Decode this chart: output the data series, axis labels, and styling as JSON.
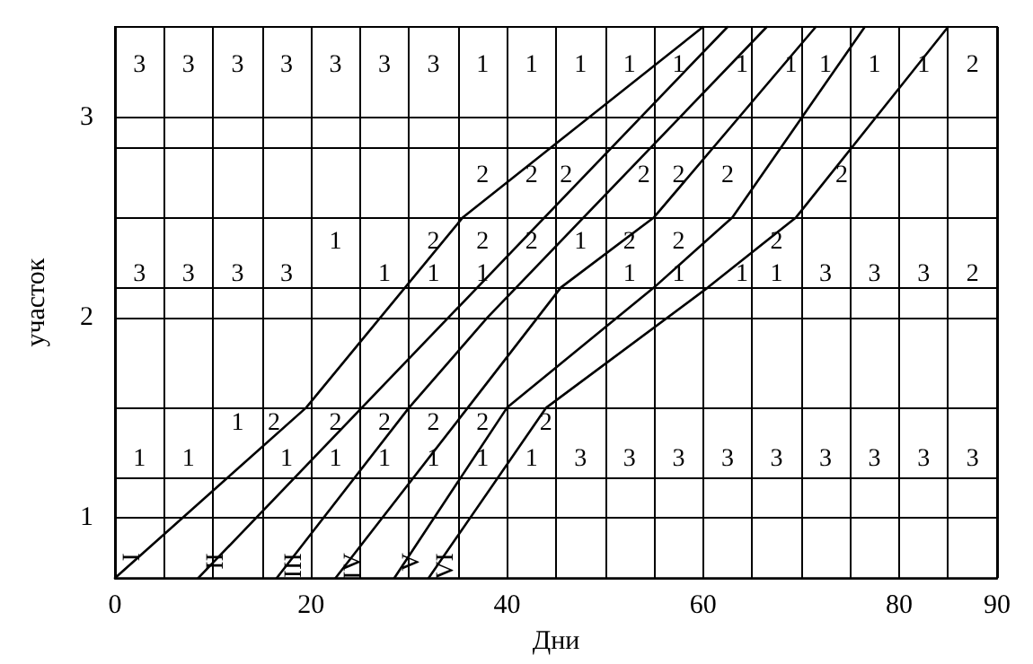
{
  "chart_data": {
    "type": "line",
    "xlabel": "Дни",
    "ylabel": "участок",
    "xlim": [
      0,
      90
    ],
    "ylim": [
      0.7,
      3.45
    ],
    "xticks": [
      0,
      {
        "value": 5,
        "label": null
      },
      {
        "value": 10,
        "label": null
      },
      {
        "value": 15,
        "label": null
      },
      20,
      {
        "value": 25,
        "label": null
      },
      {
        "value": 30,
        "label": null
      },
      {
        "value": 35,
        "label": null
      },
      40,
      {
        "value": 45,
        "label": null
      },
      {
        "value": 50,
        "label": null
      },
      {
        "value": 55,
        "label": null
      },
      60,
      {
        "value": 65,
        "label": null
      },
      {
        "value": 70,
        "label": null
      },
      {
        "value": 75,
        "label": null
      },
      80,
      {
        "value": 85,
        "label": null
      },
      90
    ],
    "yticks": [
      1,
      {
        "value": 1.2,
        "label": null
      },
      {
        "value": 1.55,
        "label": null
      },
      2,
      {
        "value": 2.15,
        "label": null
      },
      {
        "value": 2.5,
        "label": null
      },
      {
        "value": 2.85,
        "label": null
      },
      3
    ],
    "grid": true,
    "marker": "none",
    "line_style": "solid",
    "legend": false,
    "series": [
      {
        "name": "I",
        "color": "#000000",
        "x": [
          0,
          19.5,
          35.5,
          60
        ],
        "values": [
          0.7,
          1.55,
          2.5,
          3.45
        ]
      },
      {
        "name": "II",
        "color": "#000000",
        "x": [
          8.5,
          62.5
        ],
        "values": [
          0.7,
          3.45
        ]
      },
      {
        "name": "III",
        "color": "#000000",
        "x": [
          16.5,
          30,
          38,
          66.5
        ],
        "values": [
          0.7,
          1.55,
          2,
          3.45
        ]
      },
      {
        "name": "IV",
        "color": "#000000",
        "x": [
          22.5,
          36,
          45.5,
          55,
          71.5
        ],
        "values": [
          0.7,
          1.55,
          2.15,
          2.5,
          3.45
        ]
      },
      {
        "name": "V",
        "color": "#000000",
        "x": [
          28.5,
          40,
          55,
          63,
          76.5
        ],
        "values": [
          0.7,
          1.55,
          2.15,
          2.5,
          3.45
        ]
      },
      {
        "name": "VI",
        "color": "#000000",
        "x": [
          32,
          44,
          60.5,
          69.5,
          85
        ],
        "values": [
          0.7,
          1.55,
          2.15,
          2.5,
          3.45
        ]
      }
    ],
    "annotations": [
      "3",
      "3",
      "3",
      "3",
      "3",
      "3",
      "3",
      "1",
      "1",
      "1",
      "1",
      "1",
      "1",
      "1",
      "1",
      "1",
      "1",
      "2",
      "2",
      "2",
      "2",
      "2",
      "2",
      "2",
      "2",
      "1",
      "2",
      "2",
      "2",
      "1",
      "2",
      "2",
      "2",
      "3",
      "3",
      "3",
      "3",
      "1",
      "1",
      "1",
      "1",
      "1",
      "1",
      "1",
      "3",
      "3",
      "3",
      "2",
      "1",
      "2",
      "2",
      "2",
      "2",
      "2",
      "2",
      "1",
      "1",
      "1",
      "1",
      "1",
      "1",
      "1",
      "1",
      "3",
      "3",
      "3",
      "3",
      "3",
      "3",
      "3",
      "3",
      "3"
    ]
  }
}
